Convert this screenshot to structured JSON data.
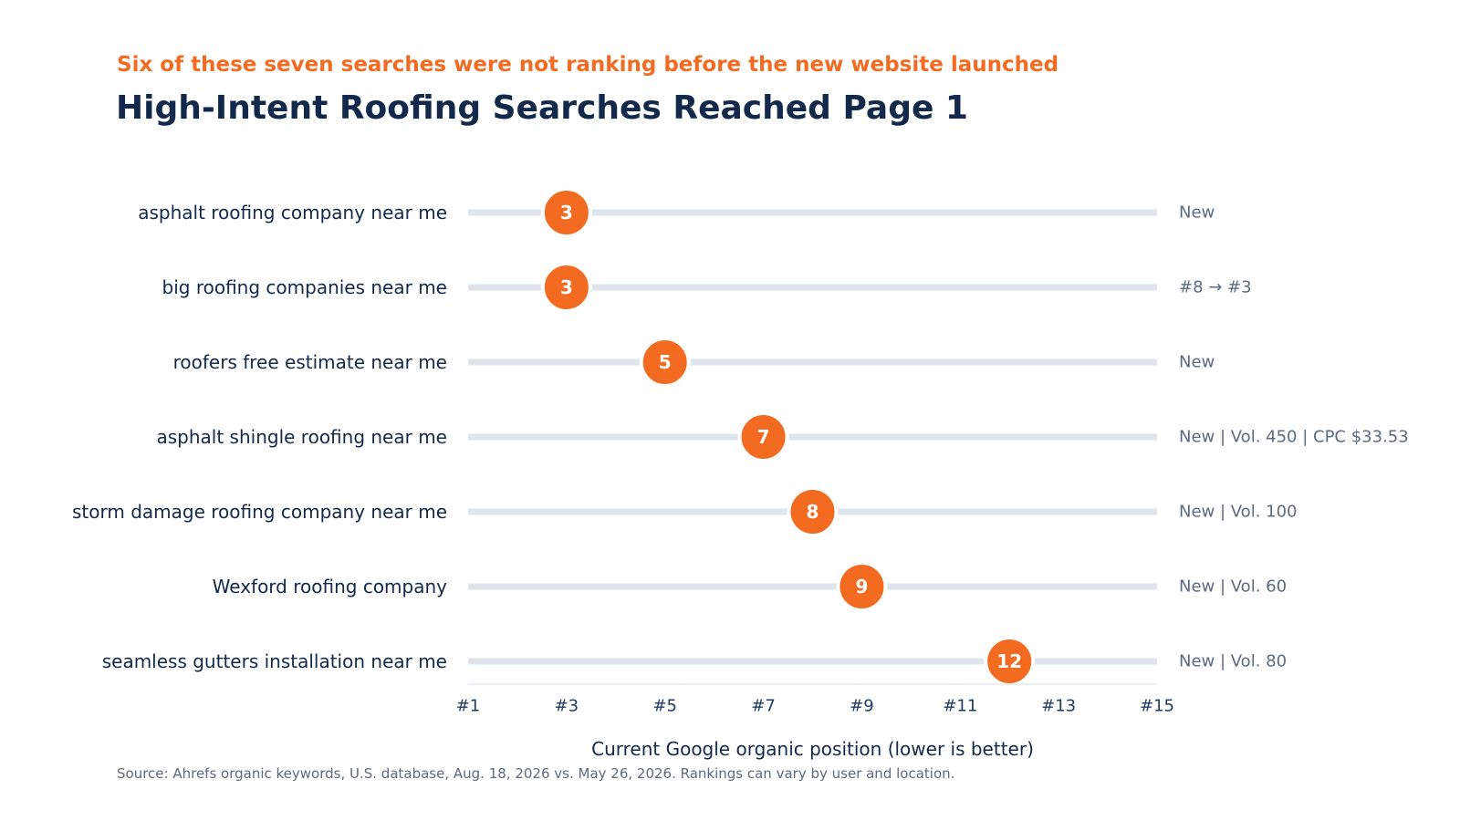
{
  "header": {
    "subtitle": "Six of these seven searches were not ranking before the new website launched",
    "title": "High-Intent Roofing Searches Reached Page 1"
  },
  "footer": {
    "source": "Source: Ahrefs organic keywords, U.S. database, Aug. 18, 2026 vs. May 26, 2026. Rankings can vary by user and location."
  },
  "colors": {
    "accent": "#f26b21",
    "title": "#13294b",
    "track": "#dfe5ec",
    "note": "#5a6b82",
    "tick": "#1f3b63"
  },
  "chart_data": {
    "type": "dot",
    "title": "High-Intent Roofing Searches Reached Page 1",
    "subtitle": "Six of these seven searches were not ranking before the new website launched",
    "xlabel": "Current Google organic position (lower is better)",
    "ylabel": "",
    "xlim": [
      1,
      15
    ],
    "xticks": [
      1,
      3,
      5,
      7,
      9,
      11,
      13,
      15
    ],
    "xtick_labels": [
      "#1",
      "#3",
      "#5",
      "#7",
      "#9",
      "#11",
      "#13",
      "#15"
    ],
    "grid": false,
    "categories": [
      "asphalt roofing company near me",
      "big roofing companies near me",
      "roofers free estimate near me",
      "asphalt shingle roofing near me",
      "storm damage roofing company near me",
      "Wexford roofing company",
      "seamless gutters installation near me"
    ],
    "values": [
      3,
      3,
      5,
      7,
      8,
      9,
      12
    ],
    "notes": [
      "New",
      "#8 → #3",
      "New",
      "New | Vol. 450 | CPC $33.53",
      "New | Vol. 100",
      "New | Vol. 60",
      "New | Vol. 80"
    ]
  }
}
